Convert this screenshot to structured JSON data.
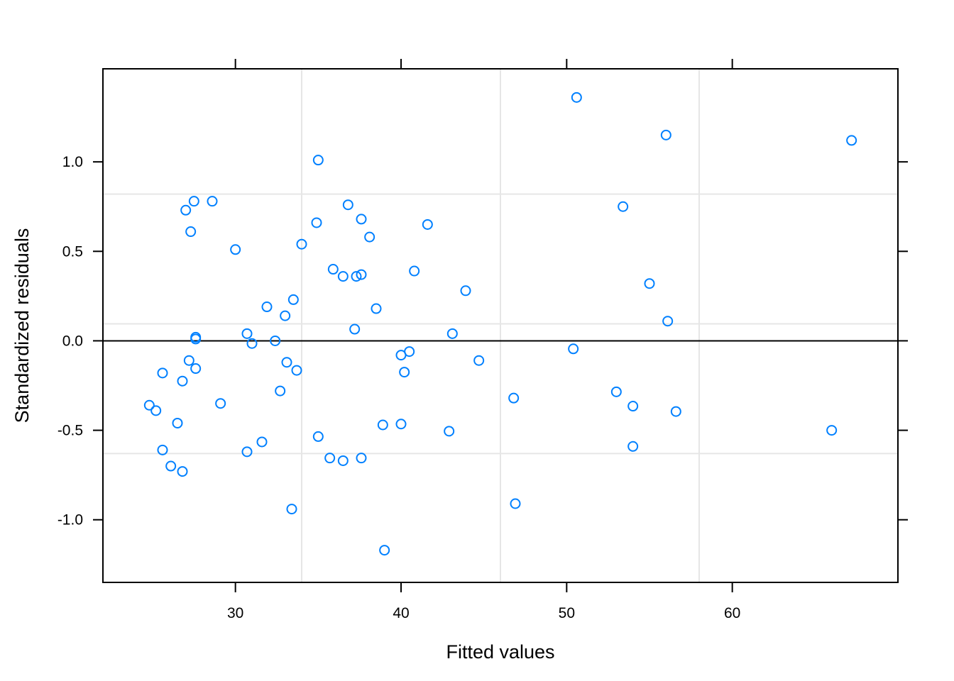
{
  "chart_data": {
    "type": "scatter",
    "title": "",
    "xlabel": "Fitted values",
    "ylabel": "Standardized residuals",
    "xlim": [
      22,
      70
    ],
    "ylim": [
      -1.35,
      1.52
    ],
    "x_ticks": [
      30,
      40,
      50,
      60
    ],
    "x_tick_labels": [
      "30",
      "40",
      "50",
      "60"
    ],
    "y_ticks": [
      -1.0,
      -0.5,
      0.0,
      0.5,
      1.0
    ],
    "y_tick_labels": [
      "-1.0",
      "-0.5",
      "0.0",
      "0.5",
      "1.0"
    ],
    "grid": true,
    "grid_x": [
      34.0,
      46.0,
      58.0
    ],
    "grid_y": [
      -0.63,
      0.095,
      0.82
    ],
    "reference_line_y": 0.0,
    "marker": "open-circle",
    "colors": {
      "points": "#0080ff",
      "grid": "#e6e6e6",
      "axis": "#000000"
    },
    "points": [
      {
        "x": 50.6,
        "y": 1.36
      },
      {
        "x": 56.0,
        "y": 1.15
      },
      {
        "x": 67.2,
        "y": 1.12
      },
      {
        "x": 35.0,
        "y": 1.01
      },
      {
        "x": 27.5,
        "y": 0.78
      },
      {
        "x": 28.6,
        "y": 0.78
      },
      {
        "x": 27.0,
        "y": 0.73
      },
      {
        "x": 36.8,
        "y": 0.76
      },
      {
        "x": 53.4,
        "y": 0.75
      },
      {
        "x": 37.6,
        "y": 0.68
      },
      {
        "x": 34.9,
        "y": 0.66
      },
      {
        "x": 41.6,
        "y": 0.65
      },
      {
        "x": 27.3,
        "y": 0.61
      },
      {
        "x": 38.1,
        "y": 0.58
      },
      {
        "x": 34.0,
        "y": 0.54
      },
      {
        "x": 30.0,
        "y": 0.51
      },
      {
        "x": 35.9,
        "y": 0.4
      },
      {
        "x": 40.8,
        "y": 0.39
      },
      {
        "x": 36.5,
        "y": 0.36
      },
      {
        "x": 37.3,
        "y": 0.36
      },
      {
        "x": 37.6,
        "y": 0.37
      },
      {
        "x": 55.0,
        "y": 0.32
      },
      {
        "x": 43.9,
        "y": 0.28
      },
      {
        "x": 33.5,
        "y": 0.23
      },
      {
        "x": 31.9,
        "y": 0.19
      },
      {
        "x": 38.5,
        "y": 0.18
      },
      {
        "x": 33.0,
        "y": 0.14
      },
      {
        "x": 56.1,
        "y": 0.11
      },
      {
        "x": 37.2,
        "y": 0.065
      },
      {
        "x": 30.7,
        "y": 0.04
      },
      {
        "x": 43.1,
        "y": 0.04
      },
      {
        "x": 27.6,
        "y": 0.02
      },
      {
        "x": 27.6,
        "y": 0.01
      },
      {
        "x": 32.4,
        "y": 0.0
      },
      {
        "x": 31.0,
        "y": -0.015
      },
      {
        "x": 50.4,
        "y": -0.045
      },
      {
        "x": 40.5,
        "y": -0.06
      },
      {
        "x": 40.0,
        "y": -0.08
      },
      {
        "x": 27.2,
        "y": -0.11
      },
      {
        "x": 33.1,
        "y": -0.12
      },
      {
        "x": 44.7,
        "y": -0.11
      },
      {
        "x": 27.6,
        "y": -0.155
      },
      {
        "x": 33.7,
        "y": -0.165
      },
      {
        "x": 40.2,
        "y": -0.175
      },
      {
        "x": 25.6,
        "y": -0.18
      },
      {
        "x": 26.8,
        "y": -0.225
      },
      {
        "x": 32.7,
        "y": -0.28
      },
      {
        "x": 53.0,
        "y": -0.285
      },
      {
        "x": 46.8,
        "y": -0.32
      },
      {
        "x": 29.1,
        "y": -0.35
      },
      {
        "x": 24.8,
        "y": -0.36
      },
      {
        "x": 54.0,
        "y": -0.365
      },
      {
        "x": 25.2,
        "y": -0.39
      },
      {
        "x": 56.6,
        "y": -0.395
      },
      {
        "x": 26.5,
        "y": -0.46
      },
      {
        "x": 38.9,
        "y": -0.47
      },
      {
        "x": 40.0,
        "y": -0.465
      },
      {
        "x": 66.0,
        "y": -0.5
      },
      {
        "x": 42.9,
        "y": -0.505
      },
      {
        "x": 35.0,
        "y": -0.535
      },
      {
        "x": 31.6,
        "y": -0.565
      },
      {
        "x": 54.0,
        "y": -0.59
      },
      {
        "x": 25.6,
        "y": -0.61
      },
      {
        "x": 30.7,
        "y": -0.62
      },
      {
        "x": 35.7,
        "y": -0.655
      },
      {
        "x": 37.6,
        "y": -0.655
      },
      {
        "x": 36.5,
        "y": -0.67
      },
      {
        "x": 26.1,
        "y": -0.7
      },
      {
        "x": 26.8,
        "y": -0.73
      },
      {
        "x": 46.9,
        "y": -0.91
      },
      {
        "x": 33.4,
        "y": -0.94
      },
      {
        "x": 39.0,
        "y": -1.17
      }
    ]
  }
}
